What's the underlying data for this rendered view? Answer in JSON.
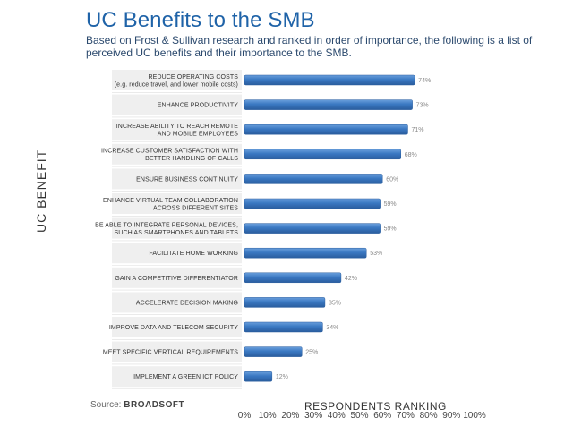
{
  "header": {
    "title": "UC Benefits to the SMB",
    "subtitle": "Based on Frost & Sullivan research and ranked in order of importance, the following is a list of perceived UC benefits and their importance to the SMB."
  },
  "footer": {
    "source_label": "Source:",
    "source_brand": "BROADSOFT"
  },
  "chart_data": {
    "type": "bar",
    "orientation": "horizontal",
    "title": "UC Benefits to the SMB",
    "xlabel": "RESPONDENTS RANKING",
    "ylabel": "UC BENEFIT",
    "xlim": [
      0,
      100
    ],
    "xticks": [
      "0%",
      "10%",
      "20%",
      "30%",
      "40%",
      "50%",
      "60%",
      "70%",
      "80%",
      "90%",
      "100%"
    ],
    "categories": [
      [
        "REDUCE OPERATING COSTS",
        "(e.g. reduce travel, and lower mobile costs)"
      ],
      [
        "ENHANCE PRODUCTIVITY"
      ],
      [
        "INCREASE ABILITY TO REACH REMOTE",
        "AND MOBILE EMPLOYEES"
      ],
      [
        "INCREASE CUSTOMER SATISFACTION WITH",
        "BETTER HANDLING OF CALLS"
      ],
      [
        "ENSURE BUSINESS CONTINUITY"
      ],
      [
        "ENHANCE VIRTUAL TEAM COLLABORATION",
        "ACROSS DIFFERENT SITES"
      ],
      [
        "BE ABLE TO INTEGRATE PERSONAL DEVICES,",
        "SUCH AS SMARTPHONES AND TABLETS"
      ],
      [
        "FACILITATE HOME WORKING"
      ],
      [
        "GAIN A COMPETITIVE DIFFERENTIATOR"
      ],
      [
        "ACCELERATE DECISION MAKING"
      ],
      [
        "IMPROVE DATA AND TELECOM SECURITY"
      ],
      [
        "MEET SPECIFIC VERTICAL REQUIREMENTS"
      ],
      [
        "IMPLEMENT A GREEN ICT POLICY"
      ]
    ],
    "values": [
      74,
      73,
      71,
      68,
      60,
      59,
      59,
      53,
      42,
      35,
      34,
      25,
      12
    ],
    "value_labels": [
      "74%",
      "73%",
      "71%",
      "68%",
      "60%",
      "59%",
      "59%",
      "53%",
      "42%",
      "35%",
      "34%",
      "25%",
      "12%"
    ],
    "bar_color": "#3a78c2"
  }
}
